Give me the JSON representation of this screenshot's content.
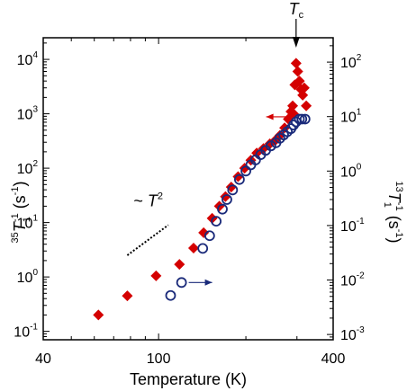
{
  "chart_data": {
    "type": "scatter",
    "xlabel": "Temperature (K)",
    "x_scale": "log",
    "xlim": [
      40,
      400
    ],
    "x_ticks": [
      {
        "value": 40,
        "label": "40"
      },
      {
        "value": 100,
        "label": "100"
      },
      {
        "value": 400,
        "label": "400"
      }
    ],
    "left_axis": {
      "label_main": "T",
      "label_pre_sup": "35",
      "label_sub": "1",
      "label_sup": "-1",
      "label_unit": " (s",
      "label_unit_sup": "-1",
      "label_unit_end": ")",
      "scale": "log",
      "ylim": [
        0.07,
        25000
      ],
      "ticks": [
        {
          "value": 0.1,
          "base": "10",
          "exp": "-1"
        },
        {
          "value": 1,
          "base": "10",
          "exp": "0"
        },
        {
          "value": 10,
          "base": "10",
          "exp": "1"
        },
        {
          "value": 100,
          "base": "10",
          "exp": "2"
        },
        {
          "value": 1000,
          "base": "10",
          "exp": "3"
        },
        {
          "value": 10000,
          "base": "10",
          "exp": "4"
        }
      ]
    },
    "right_axis": {
      "label_main": "T",
      "label_pre_sup": "13",
      "label_sub": "1",
      "label_sup": "-1",
      "label_unit": " (s",
      "label_unit_sup": "-1",
      "label_unit_end": ")",
      "scale": "log",
      "ylim": [
        0.0008,
        280
      ],
      "ticks": [
        {
          "value": 0.001,
          "base": "10",
          "exp": "-3"
        },
        {
          "value": 0.01,
          "base": "10",
          "exp": "-2"
        },
        {
          "value": 0.1,
          "base": "10",
          "exp": "-1"
        },
        {
          "value": 1,
          "base": "10",
          "exp": "0"
        },
        {
          "value": 10,
          "base": "10",
          "exp": "1"
        },
        {
          "value": 100,
          "base": "10",
          "exp": "2"
        }
      ]
    },
    "series": [
      {
        "axis": "left",
        "marker": "diamond",
        "color": "#d40000",
        "points": [
          [
            62,
            0.2
          ],
          [
            78,
            0.45
          ],
          [
            98,
            1.05
          ],
          [
            118,
            1.7
          ],
          [
            132,
            3.4
          ],
          [
            143,
            6.5
          ],
          [
            153,
            12
          ],
          [
            162,
            20
          ],
          [
            170,
            30
          ],
          [
            178,
            45
          ],
          [
            188,
            70
          ],
          [
            198,
            100
          ],
          [
            208,
            140
          ],
          [
            218,
            190
          ],
          [
            230,
            230
          ],
          [
            242,
            280
          ],
          [
            252,
            320
          ],
          [
            262,
            400
          ],
          [
            272,
            550
          ],
          [
            280,
            800
          ],
          [
            286,
            1100
          ],
          [
            290,
            1400
          ],
          [
            292,
            1000
          ],
          [
            295,
            3400
          ],
          [
            298,
            8500
          ],
          [
            302,
            6000
          ],
          [
            306,
            4000
          ],
          [
            310,
            2800
          ],
          [
            314,
            2200
          ],
          [
            318,
            3000
          ],
          [
            323,
            1400
          ]
        ]
      },
      {
        "axis": "right",
        "marker": "circle",
        "color": "#1a2a7a",
        "points": [
          [
            110,
            0.0052
          ],
          [
            120,
            0.009
          ],
          [
            142,
            0.038
          ],
          [
            150,
            0.065
          ],
          [
            158,
            0.12
          ],
          [
            166,
            0.2
          ],
          [
            172,
            0.3
          ],
          [
            180,
            0.45
          ],
          [
            190,
            0.7
          ],
          [
            200,
            1.0
          ],
          [
            208,
            1.3
          ],
          [
            216,
            1.6
          ],
          [
            225,
            2.0
          ],
          [
            234,
            2.4
          ],
          [
            244,
            2.9
          ],
          [
            254,
            3.3
          ],
          [
            262,
            4.0
          ],
          [
            270,
            4.6
          ],
          [
            278,
            5.3
          ],
          [
            286,
            6.0
          ],
          [
            292,
            7.0
          ],
          [
            298,
            8.0
          ],
          [
            306,
            9.0
          ],
          [
            312,
            9.0
          ],
          [
            320,
            9.0
          ]
        ]
      }
    ],
    "annotations": {
      "tc_label_main": "T",
      "tc_label_sub": "c",
      "tc_x": 298,
      "slope_label_prefix": "~ ",
      "slope_label_main": "T",
      "slope_label_sup": "2",
      "slope_line": {
        "x": [
          78,
          108
        ],
        "y": [
          2.5,
          9
        ]
      },
      "arrow_left": {
        "x_from": 275,
        "x_to": 235,
        "y": 880,
        "axis": "left",
        "color": "#d40000"
      },
      "arrow_right": {
        "x_from": 127,
        "x_to": 153,
        "y": 0.009,
        "axis": "right",
        "color": "#1a2a7a"
      }
    }
  }
}
